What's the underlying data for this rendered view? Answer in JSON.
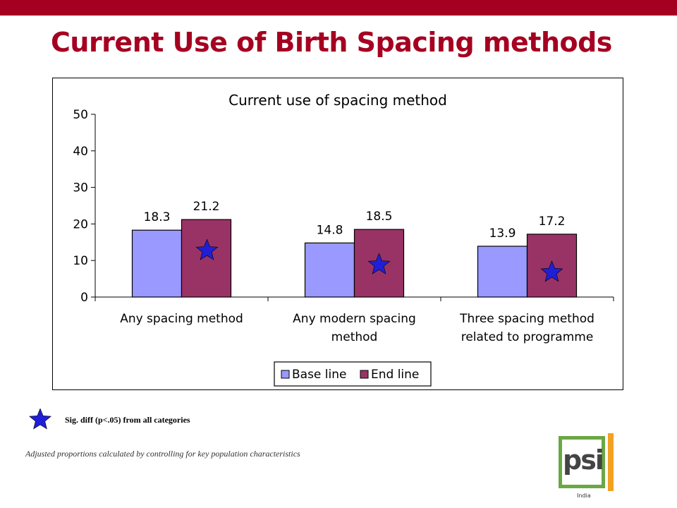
{
  "slide": {
    "title": "Current Use of Birth Spacing methods",
    "significance_note": "Sig. diff (p<.05) from all categories",
    "footnote": "Adjusted proportions calculated by controlling for key population characteristics"
  },
  "logo": {
    "text": "psi",
    "sub": "India"
  },
  "colors": {
    "brand": "#a50021",
    "baseline": "#9999ff",
    "endline": "#993366",
    "star": "#1f1fd6"
  },
  "icons": {
    "significance": "star-icon"
  },
  "chart_data": {
    "type": "bar",
    "title": "Current use of spacing method",
    "categories": [
      [
        "Any spacing method"
      ],
      [
        "Any modern spacing",
        "method"
      ],
      [
        "Three spacing method",
        "related to programme"
      ]
    ],
    "series": [
      {
        "name": "Base line",
        "values": [
          18.3,
          14.8,
          13.9
        ],
        "labels": [
          "18.3",
          "14.8",
          "13.9"
        ]
      },
      {
        "name": "End line",
        "values": [
          21.2,
          18.5,
          17.2
        ],
        "labels": [
          "21.2",
          "18.5",
          "17.2"
        ]
      }
    ],
    "significant_endline": [
      true,
      true,
      true
    ],
    "ylim": [
      0,
      50
    ],
    "yticks": [
      0,
      10,
      20,
      30,
      40,
      50
    ],
    "grid": false,
    "legend": "bottom"
  }
}
